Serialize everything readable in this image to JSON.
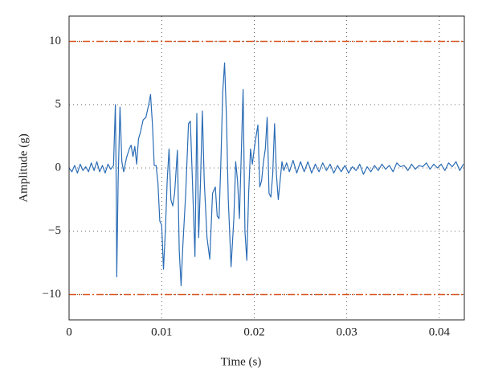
{
  "chart_data": {
    "type": "line",
    "x_label": "Time (s)",
    "y_label": "Amplitude (g)",
    "x": [
      0,
      0.0003,
      0.0006,
      0.0009,
      0.0012,
      0.0015,
      0.0018,
      0.0021,
      0.0024,
      0.0027,
      0.003,
      0.0033,
      0.0036,
      0.0039,
      0.0042,
      0.0045,
      0.0048,
      0.005,
      0.0051,
      0.00515,
      0.0053,
      0.0055,
      0.0057,
      0.0059,
      0.0062,
      0.0065,
      0.0067,
      0.0069,
      0.0071,
      0.0073,
      0.0075,
      0.0077,
      0.008,
      0.0083,
      0.0086,
      0.0088,
      0.009,
      0.0092,
      0.0094,
      0.0096,
      0.0098,
      0.01,
      0.0102,
      0.0104,
      0.0106,
      0.0108,
      0.011,
      0.0112,
      0.0114,
      0.0117,
      0.0119,
      0.0121,
      0.0123,
      0.0126,
      0.0129,
      0.0131,
      0.0133,
      0.0136,
      0.0138,
      0.014,
      0.0142,
      0.0144,
      0.0146,
      0.0149,
      0.0152,
      0.0155,
      0.0158,
      0.016,
      0.0162,
      0.0164,
      0.0166,
      0.0168,
      0.017,
      0.0172,
      0.0175,
      0.0178,
      0.018,
      0.0182,
      0.0184,
      0.0186,
      0.0188,
      0.019,
      0.0192,
      0.0194,
      0.0196,
      0.0198,
      0.02,
      0.0202,
      0.0204,
      0.0206,
      0.0208,
      0.021,
      0.0212,
      0.0214,
      0.0216,
      0.0218,
      0.022,
      0.0222,
      0.0224,
      0.0226,
      0.0228,
      0.023,
      0.0232,
      0.0235,
      0.0238,
      0.0242,
      0.0246,
      0.025,
      0.0254,
      0.0258,
      0.0262,
      0.0266,
      0.027,
      0.0274,
      0.0278,
      0.0282,
      0.0286,
      0.029,
      0.0294,
      0.0298,
      0.0302,
      0.0306,
      0.031,
      0.0314,
      0.0318,
      0.0322,
      0.0326,
      0.033,
      0.0334,
      0.0338,
      0.0342,
      0.0346,
      0.035,
      0.0354,
      0.0358,
      0.0362,
      0.0366,
      0.037,
      0.0374,
      0.0378,
      0.0382,
      0.0386,
      0.039,
      0.0394,
      0.0398,
      0.0402,
      0.0406,
      0.041,
      0.0414,
      0.0418,
      0.0422,
      0.0426
    ],
    "series": [
      {
        "color": "#2a6cb5",
        "values": [
          0,
          -0.3,
          0.2,
          -0.4,
          0.3,
          -0.2,
          0.1,
          -0.3,
          0.4,
          -0.2,
          0.5,
          -0.3,
          0.2,
          -0.4,
          0.3,
          -0.1,
          0.2,
          5.0,
          -2,
          -8.6,
          -1,
          4.8,
          0.5,
          -0.3,
          0.8,
          1.5,
          1.8,
          0.9,
          1.7,
          0.3,
          2.3,
          2.8,
          3.8,
          4.0,
          5.0,
          5.8,
          3.5,
          0.2,
          0.2,
          -1.2,
          -4.2,
          -4.5,
          -8.0,
          -5.0,
          -1.0,
          1.5,
          -2.5,
          -3,
          -2,
          1.4,
          -6.5,
          -9.3,
          -6,
          -2,
          3.5,
          3.7,
          -0.5,
          -7.0,
          4.3,
          -5.5,
          -1,
          4.5,
          -1,
          -5.5,
          -7.2,
          -2,
          -1.5,
          -3.8,
          -4,
          0.5,
          6.0,
          8.3,
          4,
          -2.5,
          -7.8,
          -4,
          0.5,
          -1,
          -4,
          1,
          6.2,
          -5,
          -7.3,
          -2,
          1.5,
          0.3,
          1.5,
          2.5,
          3.4,
          -1.5,
          -1,
          0.5,
          1.5,
          4.0,
          -2,
          -2.3,
          -0.5,
          3.5,
          -0.5,
          -2.5,
          -1,
          0.5,
          -0.2,
          0.4,
          -0.3,
          0.6,
          -0.4,
          0.5,
          -0.3,
          0.5,
          -0.4,
          0.3,
          -0.3,
          0.4,
          -0.2,
          0.3,
          -0.4,
          0.2,
          -0.3,
          0.2,
          -0.4,
          0.1,
          -0.2,
          0.3,
          -0.5,
          0.1,
          -0.3,
          0.2,
          -0.2,
          0.3,
          -0.1,
          0.2,
          -0.3,
          0.4,
          0.1,
          0.2,
          -0.2,
          0.3,
          -0.1,
          0.2,
          0.1,
          0.4,
          -0.1,
          0.3,
          0,
          0.3,
          -0.2,
          0.4,
          0.1,
          0.5,
          -0.2,
          0.3
        ]
      }
    ],
    "reference_lines": [
      {
        "value": 10,
        "color": "#d9541e"
      },
      {
        "value": -10,
        "color": "#d9541e"
      }
    ],
    "xlim": [
      0,
      0.0427
    ],
    "ylim": [
      -12,
      12
    ],
    "xticks": [
      0,
      0.01,
      0.02,
      0.03,
      0.04
    ],
    "yticks": [
      {
        "value": -10,
        "label": "−10"
      },
      {
        "value": -5,
        "label": "−5"
      },
      0,
      5,
      10
    ],
    "grid": true
  }
}
